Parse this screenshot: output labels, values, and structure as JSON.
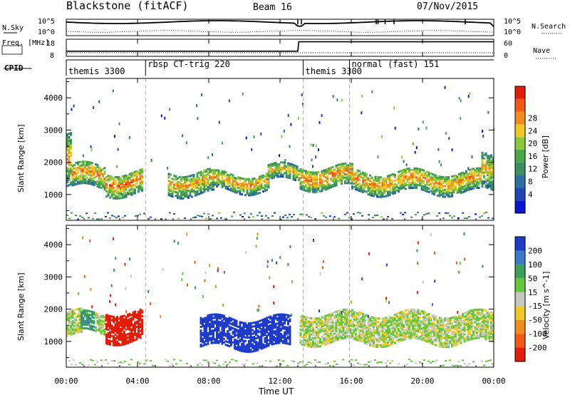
{
  "header": {
    "station": "Blackstone (fitACF)",
    "beam": "Beam 16",
    "date": "07/Nov/2015"
  },
  "chart_data": [
    {
      "type": "line",
      "panel": "noise",
      "left_label": "N.Sky",
      "right_label": "N.Search",
      "left_ticks": [
        "10^5",
        "10^0"
      ],
      "right_ticks": [
        "10^5",
        "10^0"
      ],
      "xlim_hours": [
        0,
        24
      ]
    },
    {
      "type": "line",
      "panel": "frequency",
      "left_label": "Freq. [MHz]",
      "right_label": "Nave",
      "left_ticks": [
        "18",
        "8"
      ],
      "right_ticks": [
        "60",
        "0"
      ],
      "series": [
        {
          "name": "Freq.",
          "x": [
            0,
            13.0,
            13.05,
            24
          ],
          "y": [
            11,
            11,
            16.5,
            16.5
          ]
        }
      ]
    },
    {
      "type": "table",
      "panel": "cpid",
      "label": "CPID",
      "segments": [
        {
          "start_hour": 0.0,
          "name": "themis 3300"
        },
        {
          "start_hour": 4.45,
          "name": "rbsp CT-trig 220"
        },
        {
          "start_hour": 13.3,
          "name": "themis 3300"
        },
        {
          "start_hour": 15.9,
          "name": "normal (fast) 151"
        }
      ]
    },
    {
      "type": "heatmap",
      "panel": "power",
      "ylabel": "Slant Range [km]",
      "yticks": [
        1000,
        2000,
        3000,
        4000
      ],
      "ylim": [
        200,
        4600
      ],
      "colorbar_label": "Power [dB]",
      "colorbar_ticks": [
        "4",
        "8",
        "12",
        "16",
        "20",
        "24",
        "28"
      ],
      "colorbar_colors": [
        "#0a14d2",
        "#1e46b4",
        "#2d6ea0",
        "#3c9060",
        "#4aa84a",
        "#8cc83c",
        "#f0c828",
        "#f08c1e",
        "#f05a14",
        "#e01e0a"
      ],
      "echo_bands": [
        {
          "t0": 0.0,
          "t1": 0.3,
          "r0": 1300,
          "r1": 2900,
          "level": 0.5
        },
        {
          "t0": 0.3,
          "t1": 2.2,
          "r0": 1250,
          "r1": 1950,
          "level": 0.55
        },
        {
          "t0": 2.2,
          "t1": 4.3,
          "r0": 1050,
          "r1": 1750,
          "level": 0.6
        },
        {
          "t0": 5.7,
          "t1": 8.2,
          "r0": 1050,
          "r1": 1750,
          "level": 0.5
        },
        {
          "t0": 8.2,
          "t1": 11.3,
          "r0": 1150,
          "r1": 1700,
          "level": 0.5
        },
        {
          "t0": 11.3,
          "t1": 13.0,
          "r0": 1450,
          "r1": 1900,
          "level": 0.45
        },
        {
          "t0": 13.1,
          "t1": 16.0,
          "r0": 1250,
          "r1": 1900,
          "level": 0.6
        },
        {
          "t0": 16.0,
          "t1": 23.3,
          "r0": 1100,
          "r1": 1750,
          "level": 0.55
        },
        {
          "t0": 23.3,
          "t1": 24.0,
          "r0": 1150,
          "r1": 2200,
          "level": 0.45
        }
      ]
    },
    {
      "type": "heatmap",
      "panel": "velocity",
      "ylabel": "Slant Range [km]",
      "yticks": [
        1000,
        2000,
        3000,
        4000
      ],
      "ylim": [
        200,
        4600
      ],
      "colorbar_label": "Velocity [m s^-1]",
      "colorbar_ticks": [
        "200",
        "100",
        "50",
        "15",
        "-15",
        "-50",
        "-100",
        "-200"
      ],
      "colorbar_colors": [
        "#1e3cc8",
        "#3c78c8",
        "#3ca05a",
        "#64c83c",
        "#c8c8c0",
        "#f0c828",
        "#f08c1e",
        "#f05a14",
        "#e01e0a"
      ],
      "echo_bands": [
        {
          "t0": 0.0,
          "t1": 0.8,
          "r0": 1200,
          "r1": 1950,
          "vel": 0
        },
        {
          "t0": 0.8,
          "t1": 1.6,
          "r0": 1300,
          "r1": 1900,
          "vel": 60
        },
        {
          "t0": 1.6,
          "t1": 2.2,
          "r0": 1300,
          "r1": 1900,
          "vel": 0
        },
        {
          "t0": 2.2,
          "t1": 4.3,
          "r0": 1050,
          "r1": 1950,
          "vel": -180
        },
        {
          "t0": 7.5,
          "t1": 12.5,
          "r0": 850,
          "r1": 1750,
          "vel": 180
        },
        {
          "t0": 13.1,
          "t1": 24.0,
          "r0": 1000,
          "r1": 1900,
          "vel": 0
        }
      ]
    }
  ],
  "xaxis": {
    "label": "Time UT",
    "ticks": [
      "00:00",
      "04:00",
      "08:00",
      "12:00",
      "16:00",
      "20:00",
      "00:00"
    ]
  }
}
